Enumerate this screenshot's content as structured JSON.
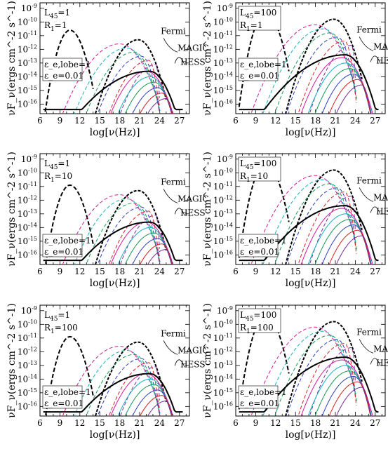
{
  "figure": {
    "ylabel": "νF_ν(ergs cm^-2 s^-1)",
    "xlabel": "log[ν(Hz)]",
    "xticks": [
      "6",
      "9",
      "12",
      "15",
      "18",
      "21",
      "24",
      "27"
    ],
    "yticks": [
      "10^-9",
      "10^-10",
      "10^-11",
      "10^-12",
      "10^-13",
      "10^-14",
      "10^-15",
      "10^-16"
    ],
    "obs_labels": {
      "fermi": "Fermi",
      "magic": "MAGIC",
      "hess": "HESS"
    },
    "colors": {
      "black": "#000000",
      "magenta": "#d6189a",
      "cyan": "#12b3c4",
      "green": "#169a52",
      "blue": "#2d3fbf",
      "red": "#d22020",
      "purple": "#7a2c9a"
    }
  },
  "chart_data": [
    {
      "type": "line",
      "panel": "top-left",
      "annotations": [
        "L45=1",
        "R1=1",
        "ε_e,lobe=1",
        "ε_e=0.01"
      ],
      "xlim": [
        6,
        28.5
      ],
      "ylim": [
        -16.7,
        -8.6
      ],
      "log_y": true
    },
    {
      "type": "line",
      "panel": "top-right",
      "annotations": [
        "L45=100",
        "R1=1",
        "ε_e,lobe=1",
        "ε_e=0.01"
      ],
      "xlim": [
        6,
        28.5
      ],
      "ylim": [
        -16.7,
        -8.6
      ],
      "log_y": true
    },
    {
      "type": "line",
      "panel": "middle-left",
      "annotations": [
        "L45=1",
        "R1=10",
        "ε_e,lobe=1",
        "ε_e=0.01"
      ],
      "xlim": [
        6,
        28.5
      ],
      "ylim": [
        -16.7,
        -8.6
      ],
      "log_y": true
    },
    {
      "type": "line",
      "panel": "middle-right",
      "annotations": [
        "L45=100",
        "R1=10",
        "ε_e,lobe=1",
        "ε_e=0.01"
      ],
      "xlim": [
        6,
        28.5
      ],
      "ylim": [
        -16.7,
        -8.6
      ],
      "log_y": true
    },
    {
      "type": "line",
      "panel": "bottom-left",
      "annotations": [
        "L45=1",
        "R1=100",
        "ε_e,lobe=1",
        "ε_e=0.01"
      ],
      "xlim": [
        6,
        28.5
      ],
      "ylim": [
        -16.7,
        -8.6
      ],
      "log_y": true
    },
    {
      "type": "line",
      "panel": "bottom-right",
      "annotations": [
        "L45=100",
        "R1=100",
        "ε_e,lobe=1",
        "ε_e=0.01"
      ],
      "xlim": [
        6,
        28.5
      ],
      "ylim": [
        -16.7,
        -8.6
      ],
      "log_y": true
    }
  ]
}
